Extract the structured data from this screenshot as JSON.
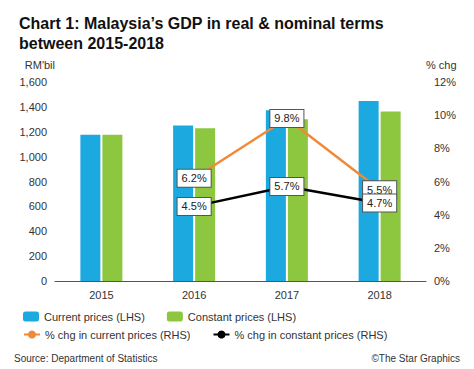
{
  "chart_data": {
    "type": "bar",
    "title": "Chart 1: Malaysia’s GDP in real & nominal terms\nbetween 2015-2018",
    "source": "Source: Department of Statistics",
    "credit": "©The Star Graphics",
    "y_label": "RM'bil",
    "y2_label": "% chg",
    "categories": [
      "2015",
      "2016",
      "2017",
      "2018"
    ],
    "series": [
      {
        "name": "Current prices (LHS)",
        "type": "bar",
        "color": "#1ba9df",
        "values": [
          1176,
          1250,
          1372,
          1447
        ]
      },
      {
        "name": "Constant prices (LHS)",
        "type": "bar",
        "color": "#8dc63f",
        "values": [
          1176,
          1229,
          1300,
          1362
        ]
      },
      {
        "name": "% chg in current prices (RHS)",
        "type": "line",
        "axis": "y2",
        "color": "#f08a3a",
        "marker": "none",
        "values": [
          null,
          6.2,
          9.8,
          5.5
        ],
        "value_labels": [
          null,
          "6.2%",
          "9.8%",
          "5.5%"
        ]
      },
      {
        "name": "% chg in constant prices (RHS)",
        "type": "line",
        "axis": "y2",
        "color": "#000000",
        "marker": "none",
        "values": [
          null,
          4.5,
          5.7,
          4.7
        ],
        "value_labels": [
          null,
          "4.5%",
          "5.7%",
          "4.7%"
        ]
      }
    ],
    "ylim": [
      0,
      1600
    ],
    "yticks": [
      0,
      200,
      400,
      600,
      800,
      {
        "value": 1000,
        "label": "1,000"
      },
      {
        "value": 1200,
        "label": "1,200"
      },
      {
        "value": 1400,
        "label": "1,400"
      },
      {
        "value": 1600,
        "label": "1,600"
      }
    ],
    "y2lim": [
      0,
      12
    ],
    "y2ticks": [
      {
        "value": 0,
        "label": "0%"
      },
      {
        "value": 2,
        "label": "2%"
      },
      {
        "value": 4,
        "label": "4%"
      },
      {
        "value": 6,
        "label": "6%"
      },
      {
        "value": 8,
        "label": "8%"
      },
      {
        "value": 10,
        "label": "10%"
      },
      {
        "value": 12,
        "label": "12%"
      }
    ],
    "grid": false,
    "legend": "bottom",
    "data_labels": true
  }
}
